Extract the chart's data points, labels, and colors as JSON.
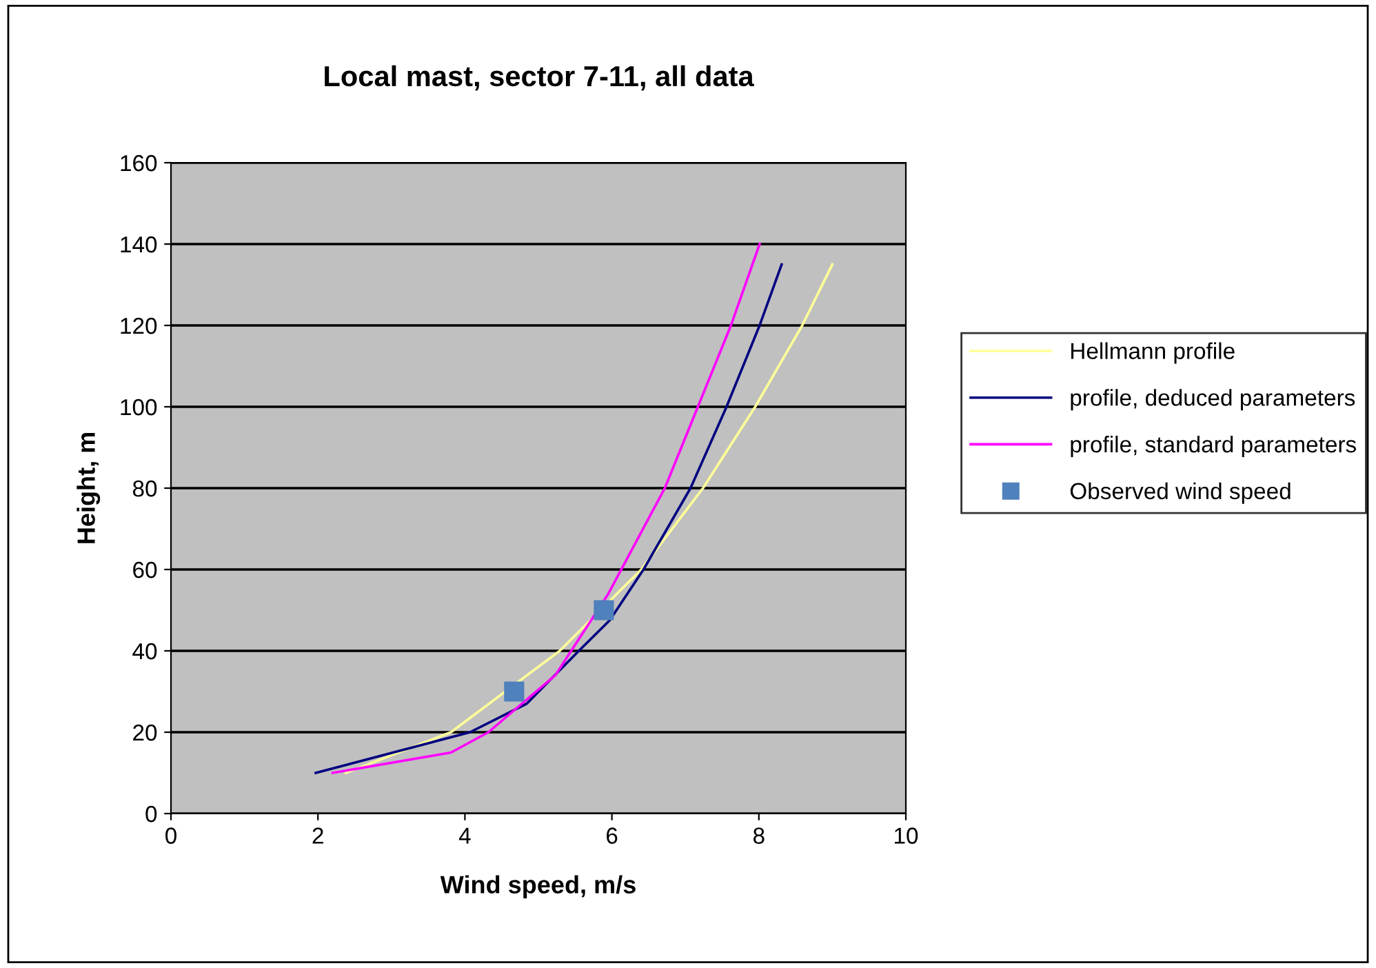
{
  "chart_data": {
    "type": "line",
    "title": "Local mast, sector 7-11, all data",
    "xlabel": "Wind speed, m/s",
    "ylabel": "Height, m",
    "xlim": [
      0,
      10
    ],
    "xticks": [
      0,
      2,
      4,
      6,
      8,
      10
    ],
    "ylim": [
      0,
      160
    ],
    "yticks": [
      0,
      20,
      40,
      60,
      80,
      100,
      120,
      140,
      160
    ],
    "grid": "y",
    "legend": "right",
    "series": [
      {
        "name": "Hellmann profile",
        "color": "#ffff99",
        "x": [
          2.38,
          3.81,
          5.29,
          6.4,
          7.24,
          7.95,
          8.59,
          9.0
        ],
        "values": [
          10,
          20,
          40,
          60,
          80,
          100,
          120,
          135
        ]
      },
      {
        "name": "profile, deduced parameters",
        "color": "#000080",
        "x": [
          1.97,
          4.07,
          4.84,
          5.55,
          5.97,
          6.43,
          7.07,
          7.56,
          8.01,
          8.31
        ],
        "values": [
          10,
          20,
          27,
          40,
          47.5,
          60,
          80,
          100,
          120,
          135
        ]
      },
      {
        "name": "profile, standard parameters",
        "color": "#ff00ff",
        "x": [
          2.2,
          3.81,
          4.32,
          5.23,
          5.95,
          6.72,
          7.17,
          7.62,
          8.01
        ],
        "values": [
          10,
          15,
          20,
          34,
          54,
          80,
          100,
          120,
          140
        ]
      },
      {
        "name": "Observed wind speed",
        "type": "scatter",
        "marker": "square",
        "color": "#4f81bd",
        "x": [
          4.67,
          5.89
        ],
        "values": [
          30,
          50
        ]
      }
    ]
  }
}
